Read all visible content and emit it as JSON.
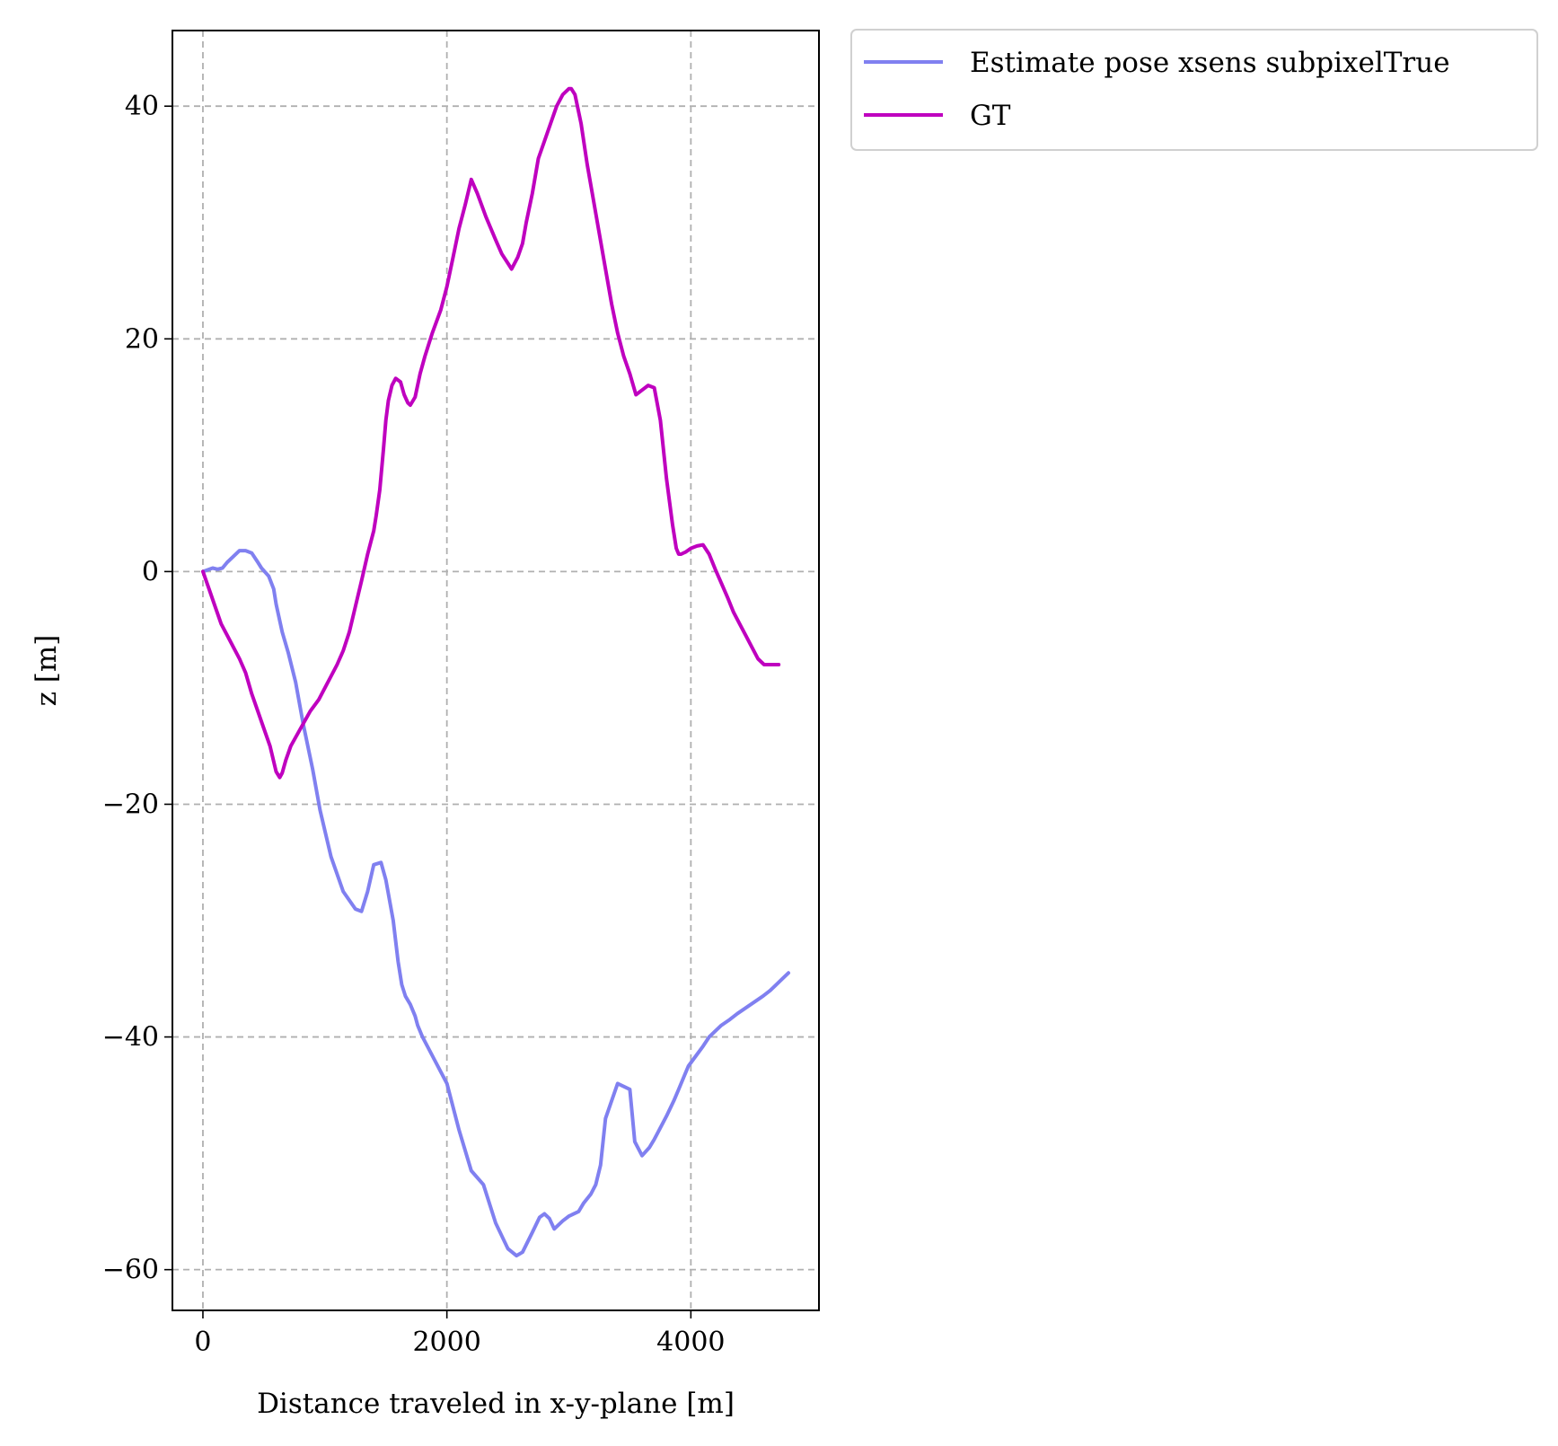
{
  "chart_data": {
    "type": "line",
    "title": "",
    "xlabel": "Distance traveled in x-y-plane [m]",
    "ylabel": "z [m]",
    "xlim": [
      -250,
      5050
    ],
    "ylim": [
      -63.5,
      46.5
    ],
    "xticks": [
      0,
      2000,
      4000
    ],
    "xtick_labels": [
      "0",
      "2000",
      "4000"
    ],
    "yticks": [
      40,
      20,
      0,
      -20,
      -40,
      -60
    ],
    "ytick_labels": [
      "40",
      "20",
      "0",
      "−20",
      "−40",
      "−60"
    ],
    "grid": true,
    "legend_position": "outside-top-right",
    "series": [
      {
        "name": "Estimate pose xsens subpixelTrue",
        "color": "#8080f0",
        "x": [
          0,
          80,
          120,
          160,
          200,
          300,
          350,
          400,
          450,
          480,
          540,
          580,
          600,
          650,
          700,
          760,
          820,
          900,
          960,
          1050,
          1150,
          1250,
          1300,
          1350,
          1400,
          1460,
          1500,
          1560,
          1600,
          1630,
          1660,
          1700,
          1740,
          1760,
          1800,
          1850,
          1900,
          1950,
          2000,
          2100,
          2200,
          2300,
          2400,
          2500,
          2570,
          2620,
          2700,
          2760,
          2800,
          2840,
          2880,
          2950,
          3000,
          3080,
          3120,
          3180,
          3220,
          3260,
          3300,
          3400,
          3500,
          3540,
          3600,
          3660,
          3700,
          3730,
          3800,
          3860,
          3900,
          3940,
          3980,
          4050,
          4100,
          4150,
          4200,
          4250,
          4320,
          4380,
          4450,
          4520,
          4590,
          4650,
          4700,
          4750,
          4800
        ],
        "y": [
          0,
          0.3,
          0.2,
          0.3,
          0.8,
          1.8,
          1.8,
          1.6,
          0.8,
          0.3,
          -0.4,
          -1.5,
          -2.8,
          -5.2,
          -7.0,
          -9.5,
          -13,
          -17,
          -20.5,
          -24.5,
          -27.5,
          -29.0,
          -29.2,
          -27.5,
          -25.2,
          -25.0,
          -26.5,
          -30.0,
          -33.5,
          -35.5,
          -36.5,
          -37.2,
          -38.2,
          -39.0,
          -40.0,
          -41.0,
          -42.0,
          -43.0,
          -44.0,
          -48.0,
          -51.5,
          -52.7,
          -56.0,
          -58.2,
          -58.8,
          -58.5,
          -56.8,
          -55.5,
          -55.2,
          -55.6,
          -56.5,
          -55.8,
          -55.4,
          -55.0,
          -54.3,
          -53.5,
          -52.7,
          -51.0,
          -47.0,
          -44.0,
          -44.5,
          -49.0,
          -50.2,
          -49.5,
          -48.8,
          -48.2,
          -46.8,
          -45.5,
          -44.5,
          -43.5,
          -42.5,
          -41.5,
          -40.8,
          -40.0,
          -39.5,
          -39.0,
          -38.5,
          -38.0,
          -37.5,
          -37.0,
          -36.5,
          -36.0,
          -35.5,
          -35.0,
          -34.5
        ],
        "values": [
          0,
          0.3,
          0.2,
          0.3,
          0.8,
          1.8,
          1.8,
          1.6,
          0.8,
          0.3,
          -0.4,
          -1.5,
          -2.8,
          -5.2,
          -7.0,
          -9.5,
          -13,
          -17,
          -20.5,
          -24.5,
          -27.5,
          -29.0,
          -29.2,
          -27.5,
          -25.2,
          -25.0,
          -26.5,
          -30.0,
          -33.5,
          -35.5,
          -36.5,
          -37.2,
          -38.2,
          -39.0,
          -40.0,
          -41.0,
          -42.0,
          -43.0,
          -44.0,
          -48.0,
          -51.5,
          -52.7,
          -56.0,
          -58.2,
          -58.8,
          -58.5,
          -56.8,
          -55.5,
          -55.2,
          -55.6,
          -56.5,
          -55.8,
          -55.4,
          -55.0,
          -54.3,
          -53.5,
          -52.7,
          -51.0,
          -47.0,
          -44.0,
          -44.5,
          -49.0,
          -50.2,
          -49.5,
          -48.8,
          -48.2,
          -46.8,
          -45.5,
          -44.5,
          -43.5,
          -42.5,
          -41.5,
          -40.8,
          -40.0,
          -39.5,
          -39.0,
          -38.5,
          -38.0,
          -37.5,
          -37.0,
          -36.5,
          -36.0,
          -35.5,
          -35.0,
          -34.5
        ]
      },
      {
        "name": "GT",
        "color": "#bf00bf",
        "x": [
          0,
          50,
          100,
          150,
          200,
          250,
          300,
          350,
          400,
          450,
          500,
          550,
          600,
          630,
          650,
          680,
          720,
          800,
          880,
          950,
          1000,
          1050,
          1100,
          1150,
          1200,
          1250,
          1300,
          1350,
          1400,
          1420,
          1450,
          1480,
          1500,
          1520,
          1550,
          1580,
          1620,
          1650,
          1680,
          1700,
          1740,
          1780,
          1820,
          1880,
          1950,
          2000,
          2050,
          2100,
          2150,
          2200,
          2250,
          2320,
          2400,
          2450,
          2500,
          2530,
          2580,
          2620,
          2650,
          2700,
          2750,
          2800,
          2850,
          2900,
          2950,
          3000,
          3020,
          3050,
          3100,
          3150,
          3200,
          3250,
          3300,
          3350,
          3400,
          3450,
          3500,
          3550,
          3600,
          3650,
          3700,
          3750,
          3800,
          3850,
          3880,
          3900,
          3920,
          3960,
          4000,
          4050,
          4100,
          4150,
          4200,
          4250,
          4300,
          4350,
          4400,
          4450,
          4500,
          4550,
          4600,
          4650,
          4700,
          4720
        ],
        "y": [
          0,
          -1.5,
          -3.0,
          -4.5,
          -5.5,
          -6.5,
          -7.5,
          -8.7,
          -10.5,
          -12.0,
          -13.5,
          -15.0,
          -17.2,
          -17.7,
          -17.3,
          -16.2,
          -15.0,
          -13.5,
          -12.0,
          -11.0,
          -10.0,
          -9.0,
          -8.0,
          -6.8,
          -5.2,
          -3.0,
          -0.8,
          1.5,
          3.5,
          4.8,
          7.0,
          10.5,
          13.0,
          14.7,
          16.0,
          16.6,
          16.3,
          15.2,
          14.5,
          14.3,
          15.0,
          17.0,
          18.5,
          20.5,
          22.5,
          24.5,
          27.0,
          29.5,
          31.5,
          33.7,
          32.5,
          30.5,
          28.5,
          27.3,
          26.5,
          26.0,
          27.0,
          28.2,
          30.0,
          32.5,
          35.5,
          37.0,
          38.5,
          40.0,
          41.0,
          41.5,
          41.5,
          41.0,
          38.5,
          35.0,
          32.0,
          29.0,
          26.0,
          23.0,
          20.5,
          18.5,
          17.0,
          15.2,
          15.6,
          16.0,
          15.8,
          13.0,
          8.0,
          4.0,
          2.0,
          1.5,
          1.5,
          1.7,
          2.0,
          2.2,
          2.3,
          1.5,
          0.2,
          -1.0,
          -2.2,
          -3.5,
          -4.5,
          -5.5,
          -6.5,
          -7.5,
          -8.0,
          -8.0,
          -8.0,
          -8.0
        ],
        "values": [
          0,
          -1.5,
          -3.0,
          -4.5,
          -5.5,
          -6.5,
          -7.5,
          -8.7,
          -10.5,
          -12.0,
          -13.5,
          -15.0,
          -17.2,
          -17.7,
          -17.3,
          -16.2,
          -15.0,
          -13.5,
          -12.0,
          -11.0,
          -10.0,
          -9.0,
          -8.0,
          -6.8,
          -5.2,
          -3.0,
          -0.8,
          1.5,
          3.5,
          4.8,
          7.0,
          10.5,
          13.0,
          14.7,
          16.0,
          16.6,
          16.3,
          15.2,
          14.5,
          14.3,
          15.0,
          17.0,
          18.5,
          20.5,
          22.5,
          24.5,
          27.0,
          29.5,
          31.5,
          33.7,
          32.5,
          30.5,
          28.5,
          27.3,
          26.5,
          26.0,
          27.0,
          28.2,
          30.0,
          32.5,
          35.5,
          37.0,
          38.5,
          40.0,
          41.0,
          41.5,
          41.5,
          41.0,
          38.5,
          35.0,
          32.0,
          29.0,
          26.0,
          23.0,
          20.5,
          18.5,
          17.0,
          15.2,
          15.6,
          16.0,
          15.8,
          13.0,
          8.0,
          4.0,
          2.0,
          1.5,
          1.5,
          1.7,
          2.0,
          2.2,
          2.3,
          1.5,
          0.2,
          -1.0,
          -2.2,
          -3.5,
          -4.5,
          -5.5,
          -6.5,
          -7.5,
          -8.0,
          -8.0,
          -8.0,
          -8.0
        ]
      }
    ]
  }
}
